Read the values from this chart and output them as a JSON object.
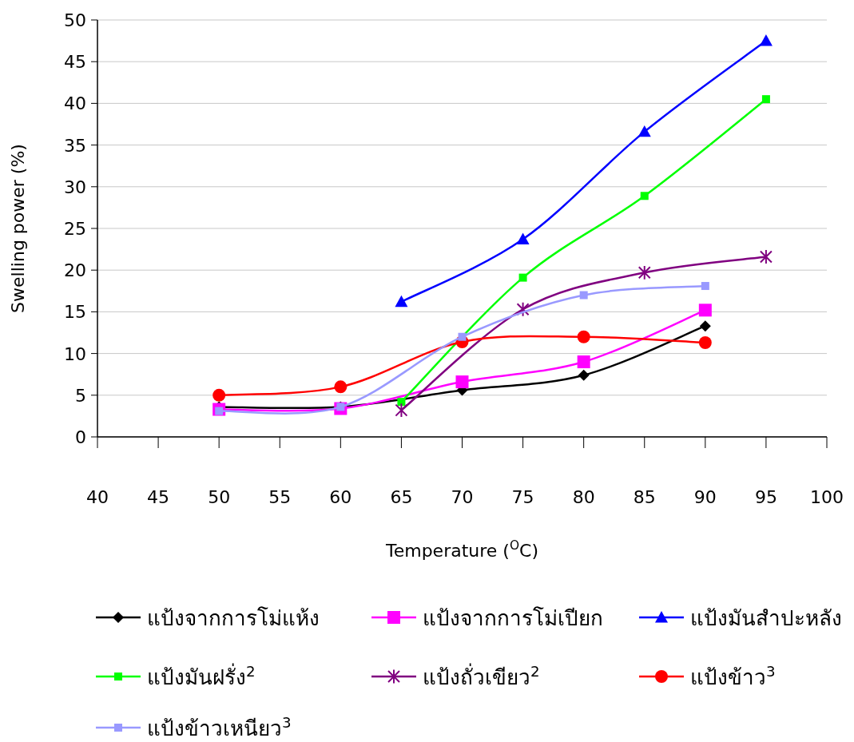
{
  "chart_data": {
    "type": "line",
    "xlabel": "Temperature ($^{O}$C)",
    "ylabel": "Swelling power (%)",
    "xlim": [
      40,
      100
    ],
    "xticks": [
      40,
      45,
      50,
      55,
      60,
      65,
      70,
      75,
      80,
      85,
      90,
      95,
      100
    ],
    "ylim": [
      0,
      50
    ],
    "yticks": [
      0,
      5,
      10,
      15,
      20,
      25,
      30,
      35,
      40,
      45,
      50
    ],
    "grid": "y",
    "legend": "bottom",
    "series": [
      {
        "name": "แป้งจากการโม่แห้ง",
        "color": "#000000",
        "marker": "diamond",
        "x": [
          50,
          60,
          70,
          80,
          90
        ],
        "values": [
          3.6,
          3.6,
          5.6,
          7.4,
          13.3
        ]
      },
      {
        "name": "แป้งจากการโม่เปียก",
        "color": "#ff00ff",
        "marker": "square",
        "x": [
          50,
          60,
          70,
          80,
          90
        ],
        "values": [
          3.3,
          3.4,
          6.6,
          9.0,
          15.2
        ]
      },
      {
        "name": "แป้งมันสำปะหลัง",
        "color": "#0000ff",
        "marker": "triangle",
        "x": [
          65,
          75,
          85,
          95
        ],
        "values": [
          16.2,
          23.7,
          36.6,
          47.5
        ]
      },
      {
        "name": "แป้งมันฝรั่ง$^{2}$",
        "color": "#00ff00",
        "marker": "square",
        "x": [
          65,
          75,
          85,
          95
        ],
        "values": [
          4.2,
          19.1,
          28.9,
          40.5
        ]
      },
      {
        "name": "แป้งถั่วเขียว$^{2}$",
        "color": "#800080",
        "marker": "cross",
        "x": [
          65,
          75,
          85,
          95
        ],
        "values": [
          3.2,
          15.3,
          19.7,
          21.6
        ]
      },
      {
        "name": "แป้งข้าว$^{3}$",
        "color": "#ff0000",
        "marker": "circle",
        "x": [
          50,
          60,
          70,
          80,
          90
        ],
        "values": [
          5.0,
          6.0,
          11.4,
          12.0,
          11.3
        ]
      },
      {
        "name": "แป้งข้าวเหนียว$^{3}$",
        "color": "#9999ff",
        "marker": "square",
        "x": [
          50,
          60,
          70,
          80,
          90
        ],
        "values": [
          3.1,
          3.6,
          12.0,
          17.0,
          18.1
        ]
      }
    ]
  }
}
